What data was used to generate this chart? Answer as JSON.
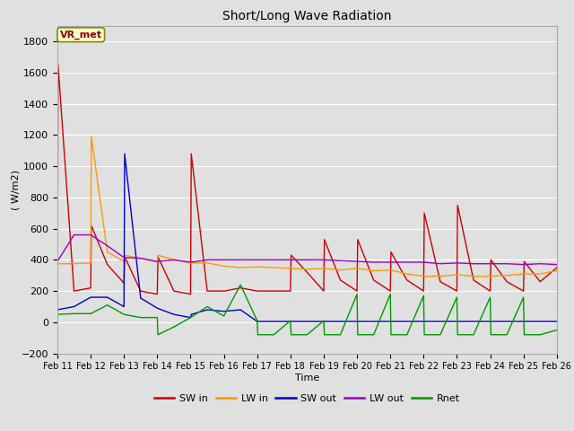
{
  "title": "Short/Long Wave Radiation",
  "xlabel": "Time",
  "ylabel": "( W/m2)",
  "ylim": [
    -200,
    1900
  ],
  "yticks": [
    -200,
    0,
    200,
    400,
    600,
    800,
    1000,
    1200,
    1400,
    1600,
    1800
  ],
  "xtick_labels": [
    "Feb 11",
    "Feb 12",
    "Feb 13",
    "Feb 14",
    "Feb 15",
    "Feb 16",
    "Feb 17",
    "Feb 18",
    "Feb 19",
    "Feb 20",
    "Feb 21",
    "Feb 22",
    "Feb 23",
    "Feb 24",
    "Feb 25",
    "Feb 26"
  ],
  "background_color": "#e0e0e0",
  "plot_bg_color": "#e0e0e0",
  "grid_color": "#ffffff",
  "annotation_text": "VR_met",
  "annotation_bg": "#ffffcc",
  "annotation_border": "#888800",
  "series_order": [
    "SW_in",
    "LW_in",
    "SW_out",
    "LW_out",
    "Rnet"
  ],
  "series": {
    "SW_in": {
      "color": "#cc0000",
      "label": "SW in",
      "x": [
        0,
        0.02,
        0.5,
        1.0,
        1.02,
        1.5,
        2.0,
        2.02,
        2.5,
        3.0,
        3.02,
        3.5,
        4.0,
        4.02,
        4.5,
        5.0,
        5.02,
        5.5,
        6.0,
        6.5,
        7.0,
        7.02,
        7.5,
        8.0,
        8.02,
        8.5,
        9.0,
        9.02,
        9.5,
        10.0,
        10.02,
        10.5,
        11.0,
        11.02,
        11.5,
        12.0,
        12.02,
        12.5,
        13.0,
        13.02,
        13.5,
        14.0,
        14.02,
        14.5,
        15.0
      ],
      "y": [
        230,
        1650,
        200,
        220,
        620,
        370,
        250,
        420,
        200,
        180,
        420,
        200,
        180,
        1080,
        200,
        200,
        200,
        220,
        200,
        200,
        200,
        430,
        320,
        200,
        530,
        270,
        200,
        530,
        270,
        200,
        450,
        270,
        200,
        700,
        260,
        200,
        750,
        270,
        200,
        400,
        260,
        200,
        390,
        260,
        350
      ]
    },
    "LW_in": {
      "color": "#ff9900",
      "label": "LW in",
      "x": [
        0,
        0.02,
        0.5,
        1.0,
        1.02,
        1.5,
        2.0,
        2.02,
        2.5,
        3.0,
        3.02,
        3.5,
        4.0,
        4.5,
        5.0,
        5.5,
        6.0,
        6.5,
        7.0,
        7.5,
        8.0,
        8.5,
        9.0,
        9.5,
        10.0,
        10.5,
        11.0,
        11.5,
        12.0,
        12.5,
        13.0,
        13.5,
        14.0,
        14.5,
        15.0
      ],
      "y": [
        375,
        375,
        375,
        380,
        1190,
        450,
        390,
        430,
        410,
        385,
        430,
        400,
        380,
        380,
        360,
        350,
        355,
        350,
        345,
        340,
        345,
        335,
        345,
        330,
        335,
        310,
        295,
        295,
        305,
        295,
        295,
        300,
        310,
        310,
        330
      ]
    },
    "SW_out": {
      "color": "#0000cc",
      "label": "SW out",
      "x": [
        0,
        0.5,
        1.0,
        1.5,
        2.0,
        2.02,
        2.5,
        3.0,
        3.5,
        4.0,
        4.02,
        4.5,
        5.0,
        5.5,
        6.0,
        6.5,
        7.0,
        7.5,
        8.0,
        8.5,
        9.0,
        9.5,
        10.0,
        10.5,
        11.0,
        11.5,
        12.0,
        12.5,
        13.0,
        13.5,
        14.0,
        14.5,
        15.0
      ],
      "y": [
        80,
        100,
        160,
        160,
        100,
        1080,
        155,
        90,
        50,
        30,
        50,
        80,
        70,
        80,
        5,
        5,
        5,
        5,
        5,
        5,
        5,
        5,
        5,
        5,
        5,
        5,
        5,
        5,
        5,
        5,
        5,
        5,
        5
      ]
    },
    "LW_out": {
      "color": "#9900cc",
      "label": "LW out",
      "x": [
        0,
        0.5,
        1.0,
        1.5,
        2.0,
        2.5,
        3.0,
        3.5,
        4.0,
        4.5,
        5.0,
        5.5,
        6.0,
        6.5,
        7.0,
        7.5,
        8.0,
        8.5,
        9.0,
        9.5,
        10.0,
        10.5,
        11.0,
        11.5,
        12.0,
        12.5,
        13.0,
        13.5,
        14.0,
        14.5,
        15.0
      ],
      "y": [
        390,
        560,
        560,
        490,
        415,
        410,
        390,
        400,
        385,
        400,
        400,
        400,
        400,
        400,
        400,
        400,
        400,
        395,
        390,
        385,
        385,
        385,
        385,
        375,
        380,
        375,
        375,
        375,
        370,
        375,
        370
      ]
    },
    "Rnet": {
      "color": "#009900",
      "label": "Rnet",
      "x": [
        0,
        0.5,
        1.0,
        1.5,
        2.0,
        2.5,
        3.0,
        3.02,
        3.5,
        4.0,
        4.5,
        5.0,
        5.5,
        6.0,
        6.02,
        6.5,
        7.0,
        7.02,
        7.5,
        8.0,
        8.02,
        8.5,
        9.0,
        9.02,
        9.5,
        10.0,
        10.02,
        10.5,
        11.0,
        11.02,
        11.5,
        12.0,
        12.02,
        12.5,
        13.0,
        13.02,
        13.5,
        14.0,
        14.02,
        14.5,
        15.0
      ],
      "y": [
        50,
        55,
        55,
        110,
        50,
        30,
        30,
        -80,
        -30,
        30,
        100,
        40,
        240,
        10,
        -80,
        -80,
        10,
        -80,
        -80,
        10,
        -80,
        -80,
        180,
        -80,
        -80,
        180,
        -80,
        -80,
        170,
        -80,
        -80,
        160,
        -80,
        -80,
        160,
        -80,
        -80,
        160,
        -80,
        -80,
        -50
      ]
    }
  },
  "linewidth": 1.0
}
